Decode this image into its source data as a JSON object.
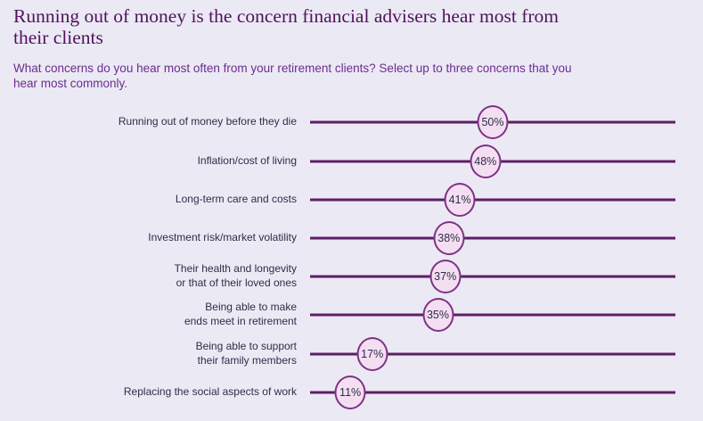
{
  "header": {
    "title": "Running out of money is the concern financial advisers hear most from\ntheir clients",
    "subtitle": "What concerns do you hear most often from your retirement clients? Select up to three concerns that you\nhear most commonly."
  },
  "colors": {
    "bg": "#EBE9F4",
    "title": "#4F135B",
    "subtitle": "#6B2D8F",
    "text": "#2F2D48",
    "line": "#5E1E64",
    "marker-fill": "#F4DEF2",
    "marker-border": "#7D3284"
  },
  "chart_data": {
    "type": "scatter",
    "variant": "horizontal dot-on-line (lollipop)",
    "title": "Running out of money is the concern financial advisers hear most from their clients",
    "subtitle": "What concerns do you hear most often from your retirement clients? Select up to three concerns that you hear most commonly.",
    "unit": "%",
    "xlim": [
      0,
      100
    ],
    "grid": false,
    "legend": false,
    "categories": [
      "Running out of money before they die",
      "Inflation/cost of living",
      "Long-term care and costs",
      "Investment risk/market volatility",
      "Their health and longevity\nor that of their loved ones",
      "Being able to make\nends meet in retirement",
      "Being able to support\ntheir family members",
      "Replacing the social aspects of work"
    ],
    "values": [
      50,
      48,
      41,
      38,
      37,
      35,
      17,
      11
    ]
  }
}
